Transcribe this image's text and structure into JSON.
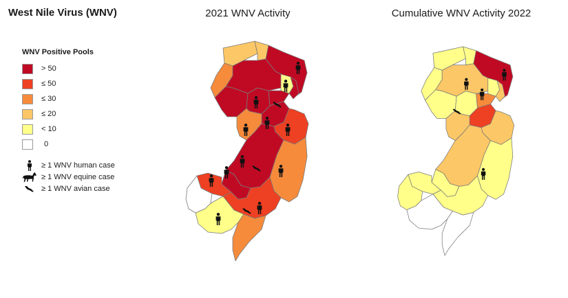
{
  "header": {
    "title": "West Nile Virus (WNV)"
  },
  "maps": [
    {
      "title": "2021 WNV Activity"
    },
    {
      "title": "Cumulative WNV Activity 2022"
    }
  ],
  "legend": {
    "title": "WNV Positive Pools",
    "classes": [
      {
        "label": "> 50",
        "color": "#c00a24"
      },
      {
        "label": "≤ 50",
        "color": "#ee4022"
      },
      {
        "label": "≤ 30",
        "color": "#f68b3c"
      },
      {
        "label": "≤ 20",
        "color": "#fcc766"
      },
      {
        "label": "< 10",
        "color": "#ffff8a"
      },
      {
        "label": "0",
        "color": "#ffffff"
      }
    ],
    "symbols": [
      {
        "icon": "human-icon",
        "label": "≥ 1 WNV human case"
      },
      {
        "icon": "horse-icon",
        "label": "≥ 1 WNV equine case"
      },
      {
        "icon": "bird-icon",
        "label": "≥ 1 WNV avian case"
      }
    ]
  },
  "colors": {
    "gt50": "#c00a24",
    "le50": "#ee4022",
    "le30": "#f68b3c",
    "le20": "#fcc766",
    "lt10": "#ffff8a",
    "zero": "#ffffff",
    "border": "#7a7a7a",
    "icon": "#111111"
  }
}
